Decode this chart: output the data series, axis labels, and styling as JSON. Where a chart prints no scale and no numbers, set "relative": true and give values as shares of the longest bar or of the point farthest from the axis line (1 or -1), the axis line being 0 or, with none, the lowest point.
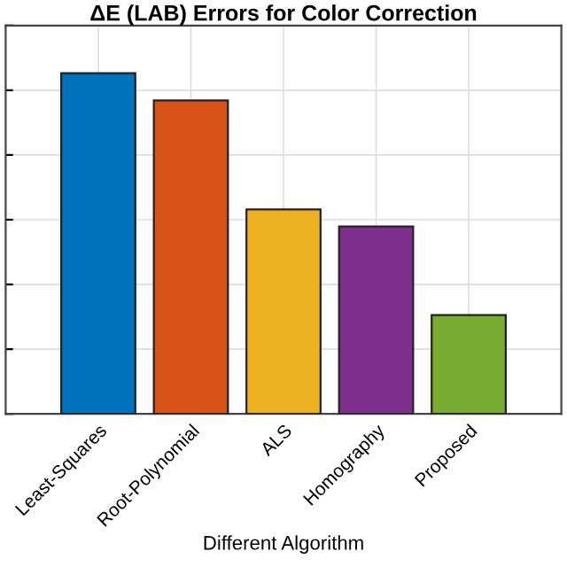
{
  "chart_data": {
    "type": "bar",
    "title": "ΔE (LAB) Errors for Color Correction",
    "xlabel": "Different Algorithm",
    "categories": [
      "Least-Squares",
      "Root-Polynomial",
      "ALS",
      "Homography",
      "Proposed"
    ],
    "values": [
      1,
      0.92,
      0.6,
      0.55,
      0.29
    ],
    "colors": [
      "#0072bd",
      "#d95319",
      "#edb120",
      "#7e2f8e",
      "#77ac30"
    ],
    "relative": true,
    "grid": true
  }
}
